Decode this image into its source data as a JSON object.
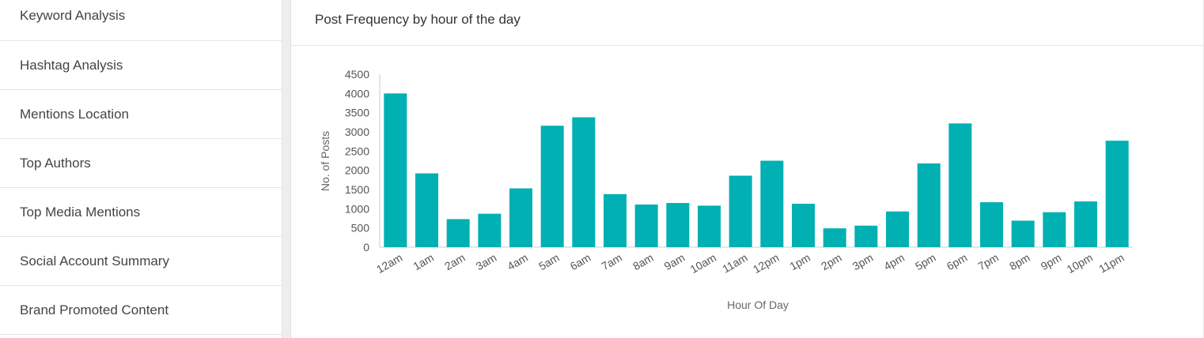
{
  "sidebar": {
    "items": [
      {
        "label": "Keyword Analysis"
      },
      {
        "label": "Hashtag Analysis"
      },
      {
        "label": "Mentions Location"
      },
      {
        "label": "Top Authors"
      },
      {
        "label": "Top Media Mentions"
      },
      {
        "label": "Social Account Summary"
      },
      {
        "label": "Brand Promoted Content"
      }
    ]
  },
  "panel": {
    "title": "Post Frequency by hour of the day"
  },
  "chart_data": {
    "type": "bar",
    "title": "Post Frequency by hour of the day",
    "xlabel": "Hour Of Day",
    "ylabel": "No. of Posts",
    "ylim": [
      0,
      4500
    ],
    "yticks": [
      0,
      500,
      1000,
      1500,
      2000,
      2500,
      3000,
      3500,
      4000,
      4500
    ],
    "categories": [
      "12am",
      "1am",
      "2am",
      "3am",
      "4am",
      "5am",
      "6am",
      "7am",
      "8am",
      "9am",
      "10am",
      "11am",
      "12pm",
      "1pm",
      "2pm",
      "3pm",
      "4pm",
      "5pm",
      "6pm",
      "7pm",
      "8pm",
      "9pm",
      "10pm",
      "11pm"
    ],
    "values": [
      4000,
      1920,
      730,
      870,
      1530,
      3160,
      3380,
      1380,
      1110,
      1150,
      1080,
      1860,
      2250,
      1130,
      490,
      560,
      930,
      2180,
      3220,
      1170,
      690,
      910,
      1190,
      2770
    ],
    "color": "#00b0b2",
    "grid": false,
    "legend": "none"
  }
}
